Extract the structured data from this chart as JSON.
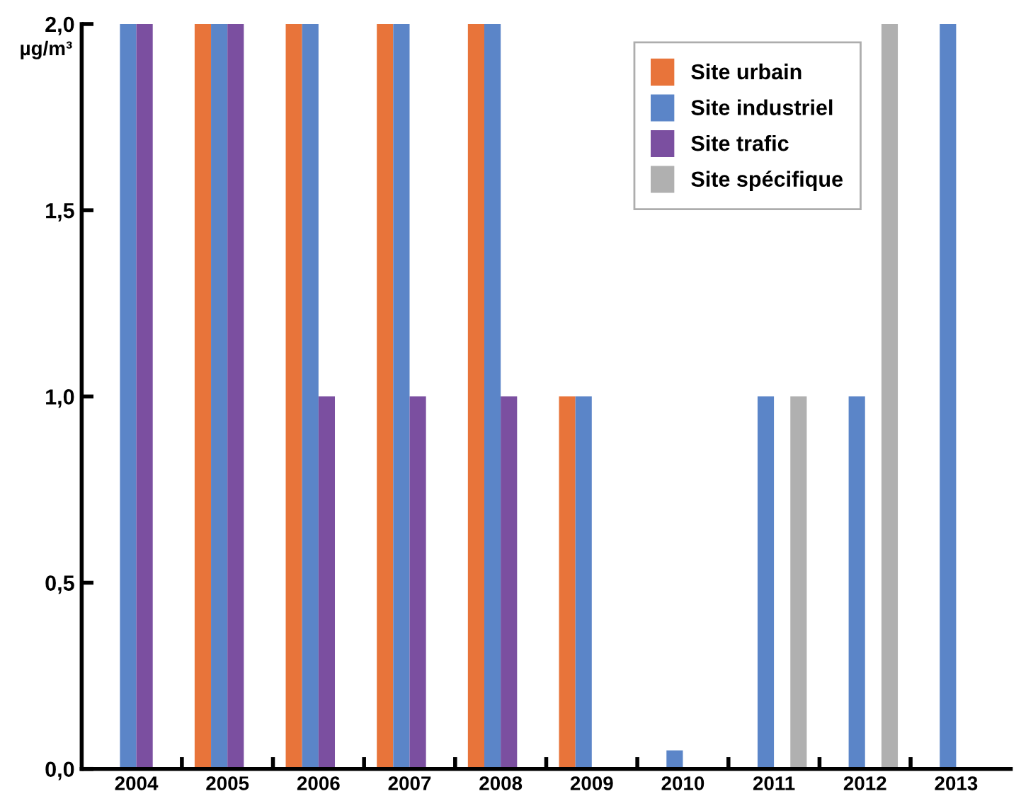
{
  "chart_data": {
    "type": "bar",
    "ylabel": "µg/m³",
    "categories": [
      "2004",
      "2005",
      "2006",
      "2007",
      "2008",
      "2009",
      "2010",
      "2011",
      "2012",
      "2013"
    ],
    "series": [
      {
        "name": "Site urbain",
        "color": "#e8743a",
        "values": [
          null,
          2,
          2,
          2,
          2,
          1,
          null,
          null,
          null,
          null
        ]
      },
      {
        "name": "Site industriel",
        "color": "#5b85c8",
        "values": [
          2,
          2,
          2,
          2,
          2,
          1,
          0.05,
          1,
          1,
          2
        ]
      },
      {
        "name": "Site trafic",
        "color": "#7b4fa0",
        "values": [
          2,
          2,
          1,
          1,
          1,
          null,
          null,
          null,
          null,
          null
        ]
      },
      {
        "name": "Site spécifique",
        "color": "#b0b0b0",
        "values": [
          null,
          null,
          null,
          null,
          null,
          null,
          null,
          1,
          2,
          null
        ]
      }
    ],
    "ylim": [
      0,
      2
    ],
    "yticks": [
      {
        "value": 0,
        "label": "0,0"
      },
      {
        "value": 0.5,
        "label": "0,5"
      },
      {
        "value": 1,
        "label": "1,0"
      },
      {
        "value": 1.5,
        "label": "1,5"
      },
      {
        "value": 2,
        "label": "2,0"
      }
    ],
    "grid": false,
    "legend": "top right"
  }
}
